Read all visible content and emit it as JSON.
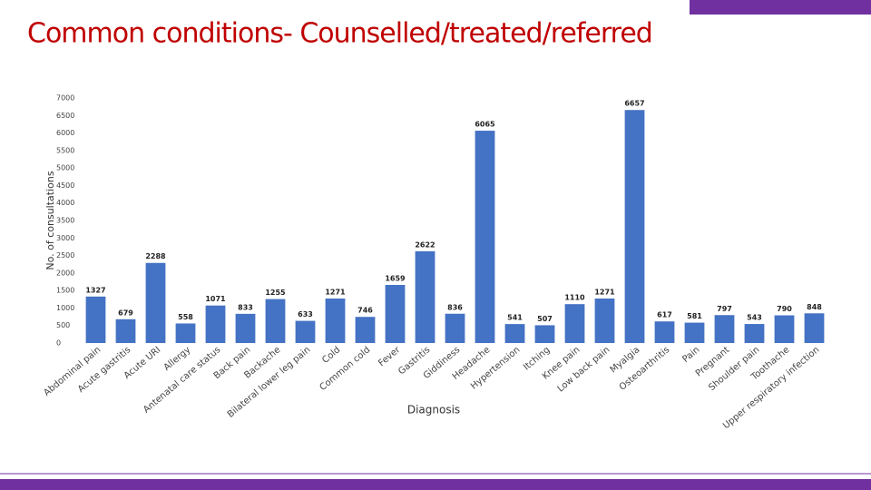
{
  "chart_data": {
    "type": "bar",
    "title": "Common conditions- Counselled/treated/referred",
    "x_label": "Diagnosis",
    "y_label": "No. of consultations",
    "categories": [
      "Abdominal pain",
      "Acute gastritis",
      "Acute URI",
      "Allergy",
      "Antenatal care status",
      "Back pain",
      "Backache",
      "Bilateral lower leg pain",
      "Cold",
      "Common cold",
      "Fever",
      "Gastritis",
      "Giddiness",
      "Headache",
      "Hypertension",
      "Itching",
      "Knee pain",
      "Low back pain",
      "Myalgia",
      "Osteoarthritis",
      "Pain",
      "Pregnant",
      "Shoulder pain",
      "Toothache",
      "Upper respiratory infection"
    ],
    "values": [
      1327,
      679,
      2288,
      558,
      1071,
      833,
      1255,
      633,
      1271,
      746,
      1659,
      2622,
      836,
      6065,
      541,
      507,
      1110,
      1271,
      6657,
      617,
      581,
      797,
      543,
      790,
      848
    ],
    "color": "#4472c4",
    "ylim": [
      0,
      7000
    ],
    "yticks": [
      0,
      500,
      1000,
      1500,
      2000,
      2500,
      3000,
      3500,
      4000,
      4500,
      5000,
      5500,
      6000,
      6500,
      7000
    ],
    "grid": false
  }
}
